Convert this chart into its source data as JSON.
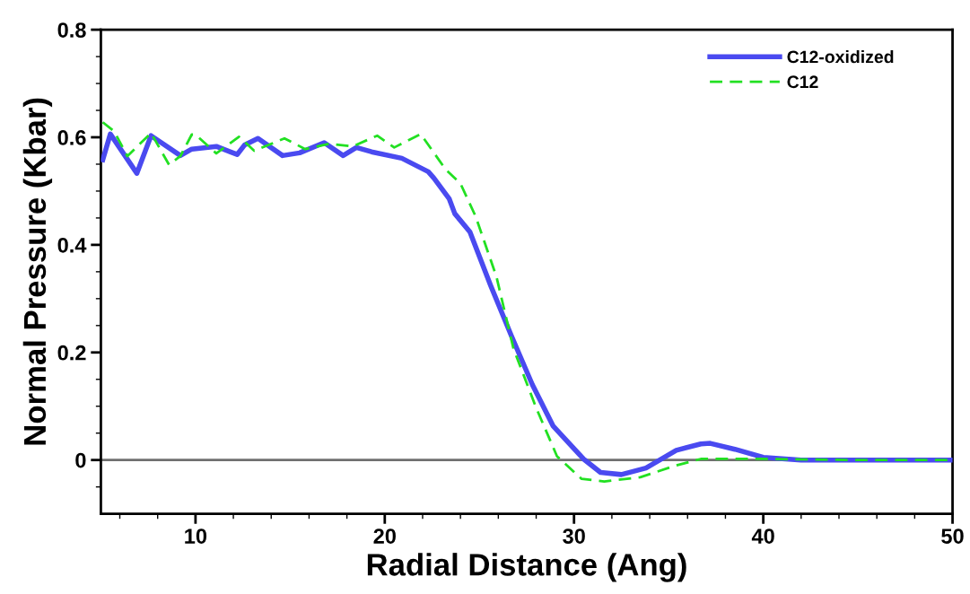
{
  "chart_data": {
    "type": "line",
    "xlabel": "Radial Distance (Ang)",
    "ylabel": "Normal Pressure (Kbar)",
    "xlim": [
      5,
      50
    ],
    "ylim": [
      -0.1,
      0.8
    ],
    "xticks": [
      {
        "value": 6,
        "label": null
      },
      {
        "value": 8,
        "label": null
      },
      10,
      {
        "value": 12,
        "label": null
      },
      {
        "value": 14,
        "label": null
      },
      {
        "value": 16,
        "label": null
      },
      {
        "value": 18,
        "label": null
      },
      20,
      {
        "value": 22,
        "label": null
      },
      {
        "value": 24,
        "label": null
      },
      {
        "value": 26,
        "label": null
      },
      {
        "value": 28,
        "label": null
      },
      30,
      {
        "value": 32,
        "label": null
      },
      {
        "value": 34,
        "label": null
      },
      {
        "value": 36,
        "label": null
      },
      {
        "value": 38,
        "label": null
      },
      40,
      {
        "value": 42,
        "label": null
      },
      {
        "value": 44,
        "label": null
      },
      {
        "value": 46,
        "label": null
      },
      {
        "value": 48,
        "label": null
      },
      50
    ],
    "yticks": [
      {
        "value": -0.05,
        "label": null
      },
      0,
      {
        "value": 0.05,
        "label": null
      },
      {
        "value": 0.1,
        "label": null
      },
      {
        "value": 0.15,
        "label": null
      },
      0.2,
      {
        "value": 0.25,
        "label": null
      },
      {
        "value": 0.3,
        "label": null
      },
      {
        "value": 0.35,
        "label": null
      },
      0.4,
      {
        "value": 0.45,
        "label": null
      },
      {
        "value": 0.5,
        "label": null
      },
      {
        "value": 0.55,
        "label": null
      },
      0.6,
      {
        "value": 0.65,
        "label": null
      },
      {
        "value": 0.7,
        "label": null
      },
      {
        "value": 0.75,
        "label": null
      },
      0.8
    ],
    "ref_lines": [
      {
        "axis": "y",
        "value": 0,
        "color": "#707070",
        "line_style": "solid"
      }
    ],
    "legend": "top right",
    "grid": false,
    "series": [
      {
        "name": "C12-oxidized",
        "color": "#4a4af0",
        "line_style": "solid",
        "x": [
          5.1,
          5.5,
          6.9,
          7.65,
          9.2,
          9.8,
          11.1,
          12.2,
          12.6,
          13.3,
          14.6,
          15.5,
          16.8,
          17.8,
          18.5,
          19.3,
          20.9,
          22.3,
          22.6,
          23.4,
          23.7,
          24.5,
          25.6,
          26.7,
          27.8,
          28.9,
          30.5,
          31.4,
          32.5,
          33.8,
          35.4,
          36.7,
          37.2,
          38.5,
          40,
          42,
          46,
          50
        ],
        "values": [
          0.558,
          0.606,
          0.533,
          0.603,
          0.566,
          0.578,
          0.583,
          0.568,
          0.586,
          0.598,
          0.566,
          0.571,
          0.59,
          0.566,
          0.581,
          0.573,
          0.561,
          0.536,
          0.524,
          0.486,
          0.458,
          0.424,
          0.324,
          0.23,
          0.14,
          0.063,
          0.002,
          -0.023,
          -0.027,
          -0.015,
          0.018,
          0.03,
          0.031,
          0.02,
          0.005,
          0.0,
          0.0,
          0.0
        ]
      },
      {
        "name": "C12",
        "color": "#22e022",
        "line_style": "dashed",
        "x": [
          5.1,
          5.7,
          6.4,
          7.65,
          8.6,
          9.2,
          9.8,
          10.0,
          11.1,
          12.3,
          13.1,
          14.7,
          15.8,
          17.1,
          18.3,
          19.6,
          20.5,
          21.9,
          23.2,
          24.0,
          24.8,
          25.9,
          26.8,
          28.0,
          29.1,
          30.4,
          31.6,
          33.5,
          35.4,
          36.7,
          40,
          45,
          50
        ],
        "values": [
          0.628,
          0.611,
          0.565,
          0.608,
          0.549,
          0.565,
          0.605,
          0.605,
          0.57,
          0.601,
          0.575,
          0.598,
          0.578,
          0.588,
          0.583,
          0.603,
          0.581,
          0.606,
          0.541,
          0.514,
          0.453,
          0.341,
          0.207,
          0.097,
          0.007,
          -0.035,
          -0.04,
          -0.032,
          -0.01,
          0.002,
          0.002,
          0.0,
          0.0
        ]
      }
    ]
  }
}
